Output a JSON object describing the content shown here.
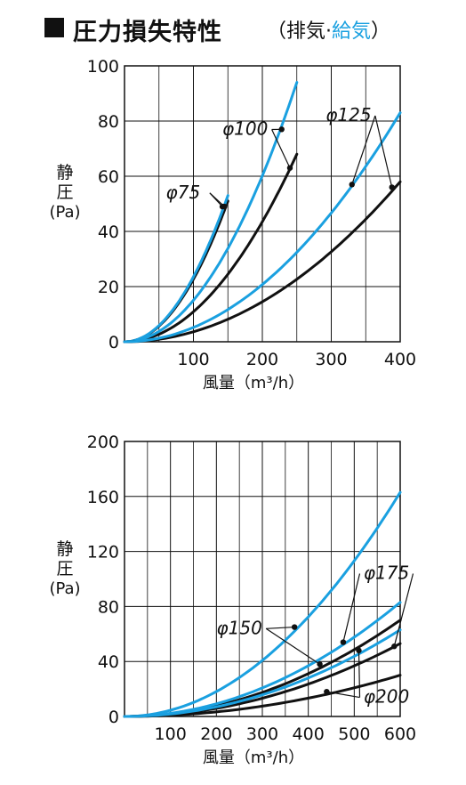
{
  "header": {
    "title": "圧力損失特性",
    "subtitle_open": "（排気·",
    "subtitle_supply": "給気",
    "subtitle_close": "）"
  },
  "colors": {
    "exhaust": "#111111",
    "supply": "#1aa0e0",
    "grid": "#111111"
  },
  "chart_data": [
    {
      "type": "line",
      "ylabel": [
        "静",
        "圧",
        "(Pa)"
      ],
      "xlabel": "風量（m³/h）",
      "xlim": [
        0,
        400
      ],
      "ylim": [
        0,
        100
      ],
      "xticks": [
        100,
        200,
        300,
        400
      ],
      "yticks": [
        0,
        20,
        40,
        60,
        80,
        100
      ],
      "grid": true,
      "series": [
        {
          "name": "φ75",
          "kind": "exhaust",
          "x_max": 150,
          "y_at_max": 51
        },
        {
          "name": "φ75",
          "kind": "supply",
          "x_max": 150,
          "y_at_max": 53
        },
        {
          "name": "φ100",
          "kind": "exhaust",
          "x_max": 250,
          "y_at_max": 68
        },
        {
          "name": "φ100",
          "kind": "supply",
          "x_max": 250,
          "y_at_max": 94
        },
        {
          "name": "φ125",
          "kind": "exhaust",
          "x_max": 400,
          "y_at_max": 58
        },
        {
          "name": "φ125",
          "kind": "supply",
          "x_max": 400,
          "y_at_max": 83
        }
      ],
      "labels": [
        {
          "text": "φ100",
          "anchor": [
            175,
            75
          ],
          "points": [
            [
              228,
              77
            ],
            [
              240,
              63
            ]
          ]
        },
        {
          "text": "φ125",
          "anchor": [
            325,
            80
          ],
          "points": [
            [
              330,
              57
            ],
            [
              388,
              56
            ]
          ]
        },
        {
          "text": "φ75",
          "anchor": [
            85,
            52
          ],
          "points": [
            [
              142,
              49
            ],
            [
              145,
              49
            ]
          ]
        }
      ]
    },
    {
      "type": "line",
      "ylabel": [
        "静",
        "圧",
        "(Pa)"
      ],
      "xlabel": "風量（m³/h）",
      "xlim": [
        0,
        600
      ],
      "ylim": [
        0,
        200
      ],
      "xticks": [
        100,
        200,
        300,
        400,
        500,
        600
      ],
      "yticks": [
        0,
        40,
        80,
        120,
        160,
        200
      ],
      "grid": true,
      "series": [
        {
          "name": "φ150",
          "kind": "exhaust",
          "x_max": 600,
          "y_at_max": 70
        },
        {
          "name": "φ150",
          "kind": "supply",
          "x_max": 600,
          "y_at_max": 163
        },
        {
          "name": "φ175",
          "kind": "exhaust",
          "x_max": 600,
          "y_at_max": 53
        },
        {
          "name": "φ175",
          "kind": "supply",
          "x_max": 600,
          "y_at_max": 83
        },
        {
          "name": "φ200",
          "kind": "exhaust",
          "x_max": 600,
          "y_at_max": 30
        },
        {
          "name": "φ200",
          "kind": "supply",
          "x_max": 600,
          "y_at_max": 63
        }
      ],
      "labels": [
        {
          "text": "φ150",
          "anchor": [
            250,
            60
          ],
          "points": [
            [
              370,
              65
            ],
            [
              425,
              38
            ]
          ]
        },
        {
          "text": "φ175",
          "anchor": [
            570,
            100
          ],
          "points": [
            [
              476,
              54
            ],
            [
              587,
              51
            ]
          ]
        },
        {
          "text": "φ200",
          "anchor": [
            570,
            10
          ],
          "points": [
            [
              510,
              48
            ],
            [
              440,
              18
            ]
          ]
        }
      ]
    }
  ]
}
